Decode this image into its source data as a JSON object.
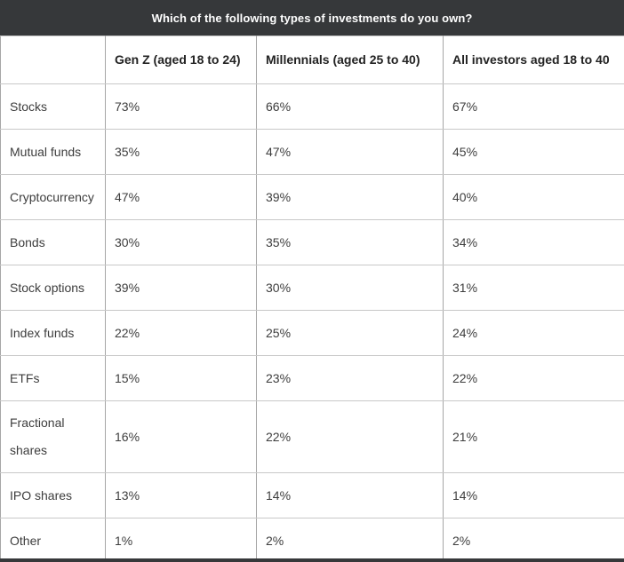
{
  "title": "Which of the following types of investments do you own?",
  "colors": {
    "title_bar_bg": "#36383a",
    "title_text": "#ffffff",
    "border_vertical": "#a6a6a6",
    "border_horizontal": "#c8c8c8",
    "header_text": "#222222",
    "body_text": "#3d3d3d"
  },
  "table": {
    "columns": [
      "",
      "Gen Z (aged 18 to 24)",
      "Millennials (aged 25 to 40)",
      "All investors aged 18 to 40"
    ],
    "rows": [
      {
        "label": "Stocks",
        "values": [
          "73%",
          "66%",
          "67%"
        ]
      },
      {
        "label": "Mutual funds",
        "values": [
          "35%",
          "47%",
          "45%"
        ]
      },
      {
        "label": "Cryptocurrency",
        "values": [
          "47%",
          "39%",
          "40%"
        ]
      },
      {
        "label": "Bonds",
        "values": [
          "30%",
          "35%",
          "34%"
        ]
      },
      {
        "label": "Stock options",
        "values": [
          "39%",
          "30%",
          "31%"
        ]
      },
      {
        "label": "Index funds",
        "values": [
          "22%",
          "25%",
          "24%"
        ]
      },
      {
        "label": "ETFs",
        "values": [
          "15%",
          "23%",
          "22%"
        ]
      },
      {
        "label": "Fractional shares",
        "values": [
          "16%",
          "22%",
          "21%"
        ]
      },
      {
        "label": "IPO shares",
        "values": [
          "13%",
          "14%",
          "14%"
        ]
      },
      {
        "label": "Other",
        "values": [
          "1%",
          "2%",
          "2%"
        ]
      }
    ]
  },
  "chart_data": {
    "type": "table",
    "title": "Which of the following types of investments do you own?",
    "categories": [
      "Stocks",
      "Mutual funds",
      "Cryptocurrency",
      "Bonds",
      "Stock options",
      "Index funds",
      "ETFs",
      "Fractional shares",
      "IPO shares",
      "Other"
    ],
    "series": [
      {
        "name": "Gen Z (aged 18 to 24)",
        "values": [
          73,
          35,
          47,
          30,
          39,
          22,
          15,
          16,
          13,
          1
        ]
      },
      {
        "name": "Millennials (aged 25 to 40)",
        "values": [
          66,
          47,
          39,
          35,
          30,
          25,
          23,
          22,
          14,
          2
        ]
      },
      {
        "name": "All investors aged 18 to 40",
        "values": [
          67,
          45,
          40,
          34,
          31,
          24,
          22,
          21,
          14,
          2
        ]
      }
    ],
    "value_unit": "%"
  }
}
